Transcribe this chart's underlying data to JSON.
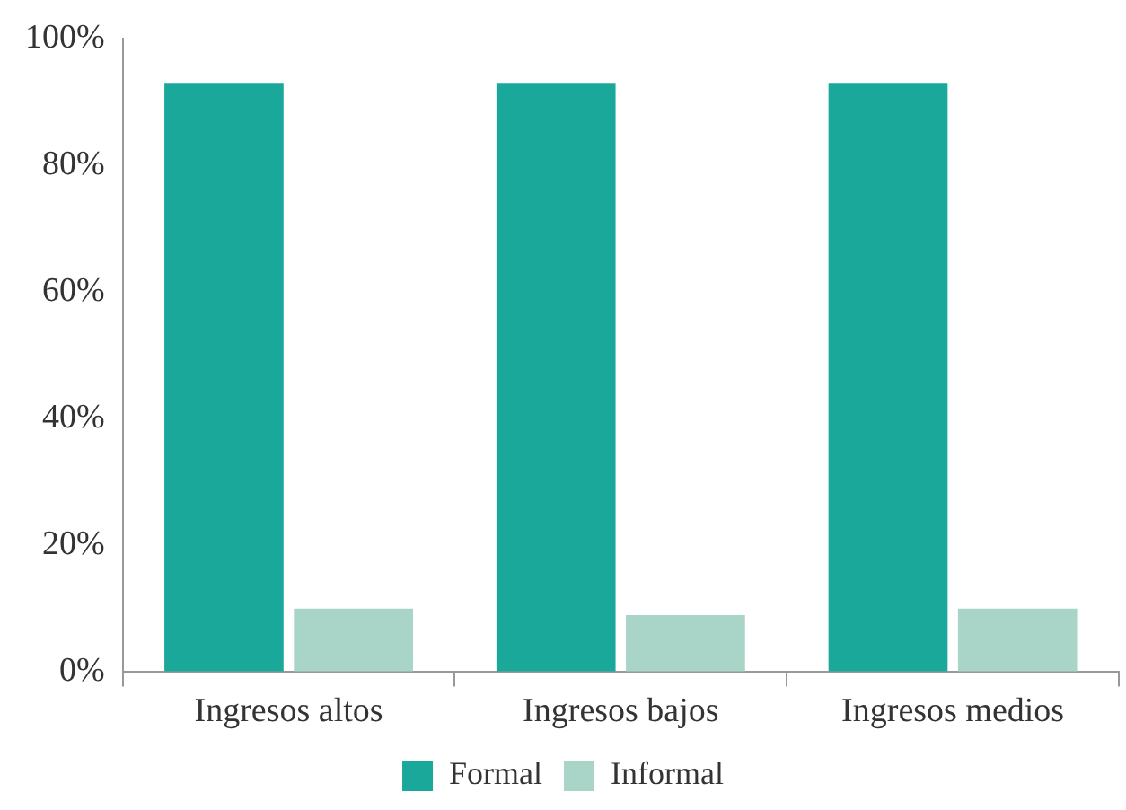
{
  "chart_data": {
    "type": "bar",
    "categories": [
      "Ingresos altos",
      "Ingresos bajos",
      "Ingresos medios"
    ],
    "series": [
      {
        "name": "Formal",
        "color": "#1aa89a",
        "values": [
          93,
          93,
          93
        ]
      },
      {
        "name": "Informal",
        "color": "#a8d5c8",
        "values": [
          10,
          9,
          10
        ]
      }
    ],
    "ylim": [
      0,
      100
    ],
    "yticks": [
      {
        "value": 0,
        "label": "0%"
      },
      {
        "value": 20,
        "label": "20%"
      },
      {
        "value": 40,
        "label": "40%"
      },
      {
        "value": 60,
        "label": "60%"
      },
      {
        "value": 80,
        "label": "80%"
      },
      {
        "value": 100,
        "label": "100%"
      }
    ],
    "grid": false,
    "legend": "bottom"
  }
}
